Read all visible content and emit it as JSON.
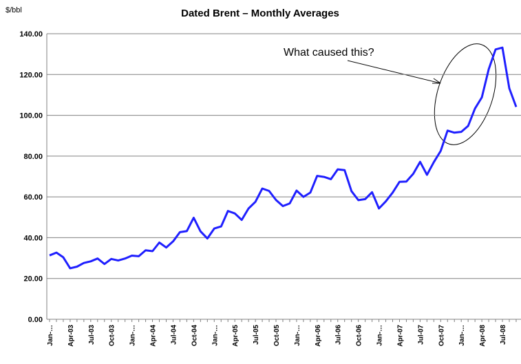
{
  "chart_data": {
    "type": "line",
    "title": "Dated Brent – Monthly Averages",
    "y_label": "$/bbl",
    "annotation": "What caused this?",
    "categories": [
      "Jan-…",
      null,
      null,
      "Apr-03",
      null,
      null,
      "Jul-03",
      null,
      null,
      "Oct-03",
      null,
      null,
      "Jan-…",
      null,
      null,
      "Apr-04",
      null,
      null,
      "Jul-04",
      null,
      null,
      "Oct-04",
      null,
      null,
      "Jan-…",
      null,
      null,
      "Apr-05",
      null,
      null,
      "Jul-05",
      null,
      null,
      "Oct-05",
      null,
      null,
      "Jan-…",
      null,
      null,
      "Apr-06",
      null,
      null,
      "Jul-06",
      null,
      null,
      "Oct-06",
      null,
      null,
      "Jan-…",
      null,
      null,
      "Apr-07",
      null,
      null,
      "Jul-07",
      null,
      null,
      "Oct-07",
      null,
      null,
      "Jan-…",
      null,
      null,
      "Apr-08",
      null,
      null,
      "Jul-08",
      null,
      null
    ],
    "series": [
      {
        "name": "Dated Brent",
        "color": "#1f1fff",
        "values": [
          31.3,
          32.7,
          30.4,
          25.0,
          25.8,
          27.6,
          28.4,
          29.8,
          27.1,
          29.6,
          28.8,
          29.8,
          31.2,
          30.9,
          33.8,
          33.4,
          37.6,
          35.2,
          38.2,
          42.7,
          43.2,
          49.8,
          43.1,
          39.6,
          44.5,
          45.5,
          53.1,
          51.9,
          48.7,
          54.3,
          57.6,
          64.1,
          62.9,
          58.5,
          55.5,
          56.8,
          63.1,
          60.0,
          62.1,
          70.3,
          69.8,
          68.7,
          73.5,
          73.1,
          62.8,
          58.4,
          58.9,
          62.3,
          54.3,
          57.8,
          62.1,
          67.4,
          67.5,
          71.3,
          77.2,
          70.8,
          77.0,
          82.5,
          92.5,
          91.5,
          91.9,
          94.8,
          103.3,
          108.8,
          122.6,
          132.3,
          133.2,
          113.2,
          104.1
        ]
      }
    ],
    "ylim": [
      0,
      140
    ],
    "yticks": [
      {
        "value": 0,
        "label": "0.00"
      },
      {
        "value": 20,
        "label": "20.00"
      },
      {
        "value": 40,
        "label": "40.00"
      },
      {
        "value": 60,
        "label": "60.00"
      },
      {
        "value": 80,
        "label": "80.00"
      },
      {
        "value": 100,
        "label": "100.00"
      },
      {
        "value": 120,
        "label": "120.00"
      },
      {
        "value": 140,
        "label": "140.00"
      }
    ],
    "grid": true
  }
}
